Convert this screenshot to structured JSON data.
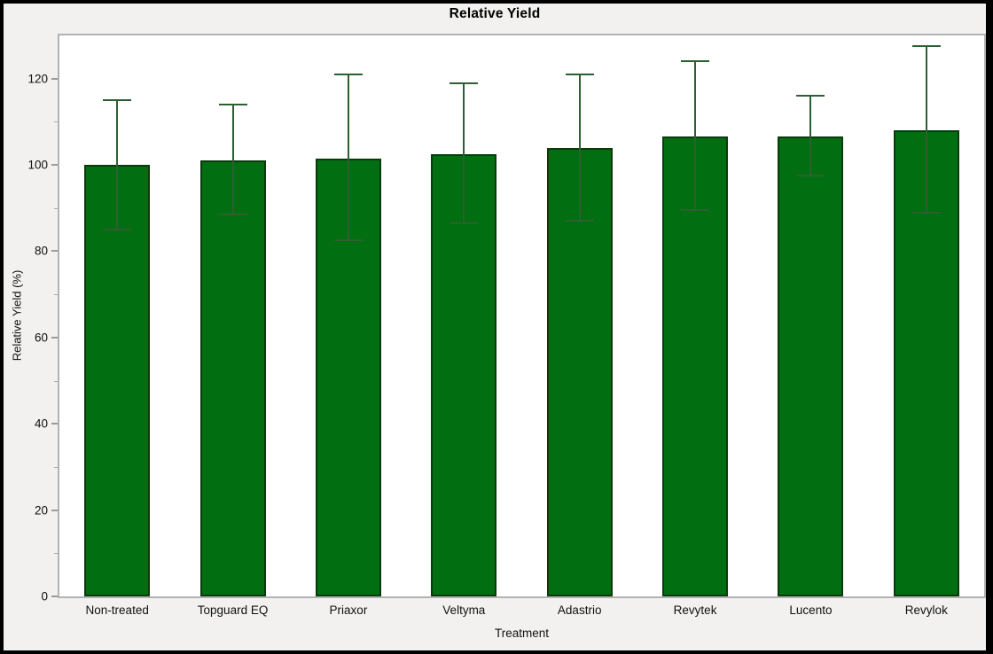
{
  "figure": {
    "title": "Relative Yield",
    "background_color": "#F2F1F0",
    "frame_color": "#000000"
  },
  "chart_data": {
    "type": "bar",
    "title": "Relative Yield",
    "xlabel": "Treatment",
    "ylabel": "Relative Yield (%)",
    "categories": [
      "Non-treated",
      "Topguard EQ",
      "Priaxor",
      "Veltyma",
      "Adastrio",
      "Revytek",
      "Lucento",
      "Revylok"
    ],
    "values": [
      100,
      101,
      101.5,
      102.5,
      104,
      106.5,
      106.5,
      108
    ],
    "error_low": [
      85,
      88.5,
      82.5,
      86.5,
      87,
      89.5,
      97.5,
      89
    ],
    "error_high": [
      115,
      114,
      121,
      119,
      121,
      124,
      116,
      127.5
    ],
    "ylim": [
      0,
      130
    ],
    "yticks": [
      0,
      20,
      40,
      60,
      80,
      100,
      120
    ],
    "minor_ticks": [
      10,
      30,
      50,
      70,
      90,
      110
    ],
    "grid": false,
    "legend_position": "none",
    "colors": {
      "bar_fill": "#016E11",
      "bar_border": "#0C3A0C",
      "error_bar": "#2E5F33",
      "plot_border": "#B2B2B2",
      "plot_background": "#FFFFFF"
    }
  }
}
